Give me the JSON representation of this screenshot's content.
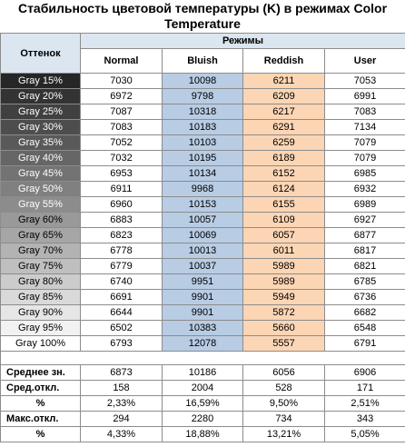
{
  "title": "Стабильность цветовой температуры (K) в режимах Color Temperature",
  "header": {
    "hue_label": "Оттенок",
    "modes_label": "Режимы",
    "columns": [
      "Normal",
      "Bluish",
      "Reddish",
      "User"
    ]
  },
  "rows": [
    {
      "label": "Gray 15%",
      "bg": "#262626",
      "fg": "#ffffff",
      "values": [
        "7030",
        "10098",
        "6211",
        "7053"
      ]
    },
    {
      "label": "Gray 20%",
      "bg": "#333333",
      "fg": "#ffffff",
      "values": [
        "6972",
        "9798",
        "6209",
        "6991"
      ]
    },
    {
      "label": "Gray 25%",
      "bg": "#404040",
      "fg": "#ffffff",
      "values": [
        "7087",
        "10318",
        "6217",
        "7083"
      ]
    },
    {
      "label": "Gray 30%",
      "bg": "#4d4d4d",
      "fg": "#ffffff",
      "values": [
        "7083",
        "10183",
        "6291",
        "7134"
      ]
    },
    {
      "label": "Gray 35%",
      "bg": "#595959",
      "fg": "#ffffff",
      "values": [
        "7052",
        "10103",
        "6259",
        "7079"
      ]
    },
    {
      "label": "Gray 40%",
      "bg": "#666666",
      "fg": "#ffffff",
      "values": [
        "7032",
        "10195",
        "6189",
        "7079"
      ]
    },
    {
      "label": "Gray 45%",
      "bg": "#737373",
      "fg": "#ffffff",
      "values": [
        "6953",
        "10134",
        "6152",
        "6985"
      ]
    },
    {
      "label": "Gray 50%",
      "bg": "#808080",
      "fg": "#ffffff",
      "values": [
        "6911",
        "9968",
        "6124",
        "6932"
      ]
    },
    {
      "label": "Gray 55%",
      "bg": "#8c8c8c",
      "fg": "#ffffff",
      "values": [
        "6960",
        "10153",
        "6155",
        "6989"
      ]
    },
    {
      "label": "Gray 60%",
      "bg": "#999999",
      "fg": "#000000",
      "values": [
        "6883",
        "10057",
        "6109",
        "6927"
      ]
    },
    {
      "label": "Gray 65%",
      "bg": "#a6a6a6",
      "fg": "#000000",
      "values": [
        "6823",
        "10069",
        "6057",
        "6877"
      ]
    },
    {
      "label": "Gray 70%",
      "bg": "#b3b3b3",
      "fg": "#000000",
      "values": [
        "6778",
        "10013",
        "6011",
        "6817"
      ]
    },
    {
      "label": "Gray 75%",
      "bg": "#bfbfbf",
      "fg": "#000000",
      "values": [
        "6779",
        "10037",
        "5989",
        "6821"
      ]
    },
    {
      "label": "Gray 80%",
      "bg": "#cccccc",
      "fg": "#000000",
      "values": [
        "6740",
        "9951",
        "5989",
        "6785"
      ]
    },
    {
      "label": "Gray 85%",
      "bg": "#d9d9d9",
      "fg": "#000000",
      "values": [
        "6691",
        "9901",
        "5949",
        "6736"
      ]
    },
    {
      "label": "Gray 90%",
      "bg": "#e6e6e6",
      "fg": "#000000",
      "values": [
        "6644",
        "9901",
        "5872",
        "6682"
      ]
    },
    {
      "label": "Gray 95%",
      "bg": "#f2f2f2",
      "fg": "#000000",
      "values": [
        "6502",
        "10383",
        "5660",
        "6548"
      ]
    },
    {
      "label": "Gray 100%",
      "bg": "#ffffff",
      "fg": "#000000",
      "values": [
        "6793",
        "12078",
        "5557",
        "6791"
      ]
    }
  ],
  "stats": [
    {
      "label": "Среднее зн.",
      "align": "left",
      "values": [
        "6873",
        "10186",
        "6056",
        "6906"
      ]
    },
    {
      "label": "Сред.откл.",
      "align": "left",
      "values": [
        "158",
        "2004",
        "528",
        "171"
      ]
    },
    {
      "label": "%",
      "align": "center",
      "values": [
        "2,33%",
        "16,59%",
        "9,50%",
        "2,51%"
      ]
    },
    {
      "label": "Макс.откл.",
      "align": "left",
      "values": [
        "294",
        "2280",
        "734",
        "343"
      ]
    },
    {
      "label": "%",
      "align": "center",
      "values": [
        "4,33%",
        "18,88%",
        "13,21%",
        "5,05%"
      ]
    }
  ],
  "colors": {
    "bluish_fill": "#b8cce4",
    "reddish_fill": "#fcd5b4",
    "header_fill": "#dce6f1",
    "border": "#8c8c8c"
  }
}
